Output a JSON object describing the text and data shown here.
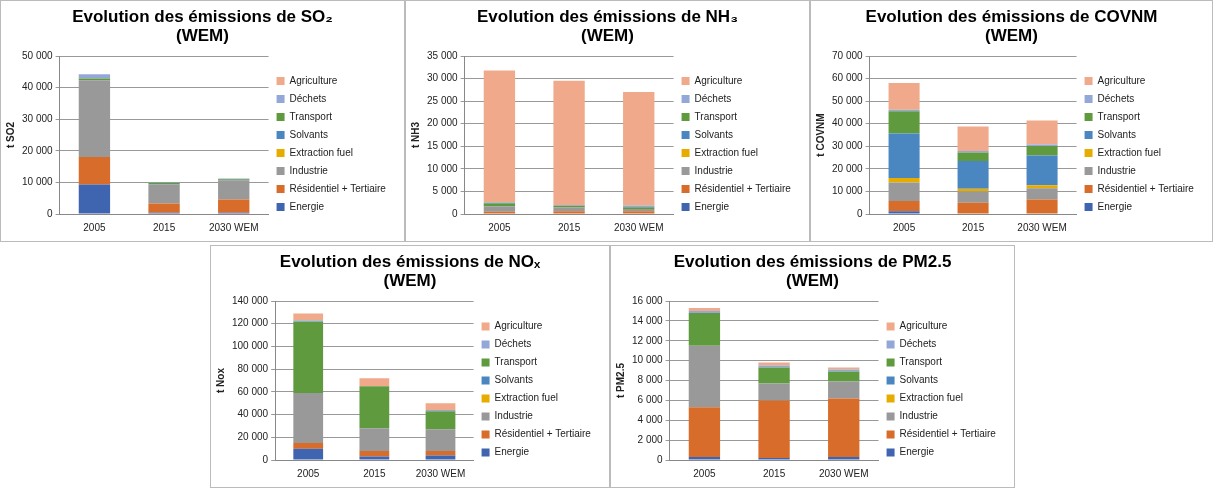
{
  "chart_data": [
    {
      "type": "bar",
      "stacked": true,
      "title": "Evolution des émissions de SO₂\n(WEM)",
      "ylabel": "t SO2",
      "categories": [
        "2005",
        "2015",
        "2030 WEM"
      ],
      "ylim": [
        0,
        50000
      ],
      "yticks": [
        {
          "value": 0,
          "label": "0"
        },
        {
          "value": 10000,
          "label": "10 000"
        },
        {
          "value": 20000,
          "label": "20 000"
        },
        {
          "value": 30000,
          "label": "30 000"
        },
        {
          "value": 40000,
          "label": "40 000"
        },
        {
          "value": 50000,
          "label": "50 000"
        }
      ],
      "grid": "y",
      "legend": "right",
      "series": [
        {
          "name": "Energie",
          "color": "#4065b0",
          "values": [
            9300,
            400,
            400
          ]
        },
        {
          "name": "Résidentiel + Tertiaire",
          "color": "#d86c2a",
          "values": [
            8700,
            2900,
            4200
          ]
        },
        {
          "name": "Industrie",
          "color": "#999999",
          "values": [
            24300,
            6100,
            6100
          ]
        },
        {
          "name": "Extraction fuel",
          "color": "#e6ad00",
          "values": [
            0,
            0,
            0
          ]
        },
        {
          "name": "Solvants",
          "color": "#4a87c0",
          "values": [
            0,
            0,
            0
          ]
        },
        {
          "name": "Transport",
          "color": "#5f9b3e",
          "values": [
            600,
            500,
            300
          ]
        },
        {
          "name": "Déchets",
          "color": "#94a8d8",
          "values": [
            1300,
            200,
            200
          ]
        },
        {
          "name": "Agriculture",
          "color": "#f0a98a",
          "values": [
            null,
            0,
            0
          ]
        }
      ]
    },
    {
      "type": "bar",
      "stacked": true,
      "title": "Evolution des émissions de NH₃\n(WEM)",
      "ylabel": "t NH3",
      "categories": [
        "2005",
        "2015",
        "2030 WEM"
      ],
      "ylim": [
        0,
        35000
      ],
      "yticks": [
        {
          "value": 0,
          "label": "0"
        },
        {
          "value": 5000,
          "label": "5 000"
        },
        {
          "value": 10000,
          "label": "10 000"
        },
        {
          "value": 15000,
          "label": "15 000"
        },
        {
          "value": 20000,
          "label": "20 000"
        },
        {
          "value": 25000,
          "label": "25 000"
        },
        {
          "value": 30000,
          "label": "30 000"
        },
        {
          "value": 35000,
          "label": "35 000"
        }
      ],
      "grid": "y",
      "legend": "right",
      "series": [
        {
          "name": "Energie",
          "color": "#4065b0",
          "values": [
            100,
            100,
            100
          ]
        },
        {
          "name": "Résidentiel + Tertiaire",
          "color": "#d86c2a",
          "values": [
            400,
            500,
            500
          ]
        },
        {
          "name": "Industrie",
          "color": "#999999",
          "values": [
            1200,
            900,
            500
          ]
        },
        {
          "name": "Extraction fuel",
          "color": "#e6ad00",
          "values": [
            0,
            0,
            0
          ]
        },
        {
          "name": "Solvants",
          "color": "#4a87c0",
          "values": [
            0,
            0,
            0
          ]
        },
        {
          "name": "Transport",
          "color": "#5f9b3e",
          "values": [
            700,
            300,
            400
          ]
        },
        {
          "name": "Déchets",
          "color": "#94a8d8",
          "values": [
            200,
            200,
            400
          ]
        },
        {
          "name": "Agriculture",
          "color": "#f0a98a",
          "values": [
            29200,
            27500,
            25100
          ]
        }
      ]
    },
    {
      "type": "bar",
      "stacked": true,
      "title": "Evolution des émissions de COVNM\n(WEM)",
      "ylabel": "t COVNM",
      "categories": [
        "2005",
        "2015",
        "2030 WEM"
      ],
      "ylim": [
        0,
        70000
      ],
      "yticks": [
        {
          "value": 0,
          "label": "0"
        },
        {
          "value": 10000,
          "label": "10 000"
        },
        {
          "value": 20000,
          "label": "20 000"
        },
        {
          "value": 30000,
          "label": "30 000"
        },
        {
          "value": 40000,
          "label": "40 000"
        },
        {
          "value": 50000,
          "label": "50 000"
        },
        {
          "value": 60000,
          "label": "60 000"
        },
        {
          "value": 70000,
          "label": "70 000"
        }
      ],
      "grid": "y",
      "legend": "right",
      "series": [
        {
          "name": "Energie",
          "color": "#4065b0",
          "values": [
            1200,
            200,
            200
          ]
        },
        {
          "name": "Résidentiel + Tertiaire",
          "color": "#d86c2a",
          "values": [
            4600,
            4800,
            6200
          ]
        },
        {
          "name": "Industrie",
          "color": "#999999",
          "values": [
            8200,
            5000,
            5000
          ]
        },
        {
          "name": "Extraction fuel",
          "color": "#e6ad00",
          "values": [
            2000,
            1200,
            1300
          ]
        },
        {
          "name": "Solvants",
          "color": "#4a87c0",
          "values": [
            19700,
            12300,
            13200
          ]
        },
        {
          "name": "Transport",
          "color": "#5f9b3e",
          "values": [
            9800,
            3800,
            4200
          ]
        },
        {
          "name": "Déchets",
          "color": "#94a8d8",
          "values": [
            700,
            600,
            700
          ]
        },
        {
          "name": "Agriculture",
          "color": "#f0a98a",
          "values": [
            11800,
            10900,
            10600
          ]
        }
      ]
    },
    {
      "type": "bar",
      "stacked": true,
      "title": "Evolution des émissions de NOₓ\n(WEM)",
      "ylabel": "t Nox",
      "categories": [
        "2005",
        "2015",
        "2030 WEM"
      ],
      "ylim": [
        0,
        140000
      ],
      "yticks": [
        {
          "value": 0,
          "label": "0"
        },
        {
          "value": 20000,
          "label": "20 000"
        },
        {
          "value": 40000,
          "label": "40 000"
        },
        {
          "value": 60000,
          "label": "60 000"
        },
        {
          "value": 80000,
          "label": "80 000"
        },
        {
          "value": 100000,
          "label": "100 000"
        },
        {
          "value": 120000,
          "label": "120 000"
        },
        {
          "value": 140000,
          "label": "140 000"
        }
      ],
      "grid": "y",
      "legend": "right",
      "series": [
        {
          "name": "Energie",
          "color": "#4065b0",
          "values": [
            10000,
            3000,
            4000
          ]
        },
        {
          "name": "Résidentiel + Tertiaire",
          "color": "#d86c2a",
          "values": [
            5000,
            5000,
            4000
          ]
        },
        {
          "name": "Industrie",
          "color": "#999999",
          "values": [
            44000,
            20000,
            19000
          ]
        },
        {
          "name": "Extraction fuel",
          "color": "#e6ad00",
          "values": [
            0,
            0,
            0
          ]
        },
        {
          "name": "Solvants",
          "color": "#4a87c0",
          "values": [
            0,
            0,
            0
          ]
        },
        {
          "name": "Transport",
          "color": "#5f9b3e",
          "values": [
            63000,
            37000,
            16000
          ]
        },
        {
          "name": "Déchets",
          "color": "#94a8d8",
          "values": [
            1000,
            0,
            1000
          ]
        },
        {
          "name": "Agriculture",
          "color": "#f0a98a",
          "values": [
            6000,
            7000,
            6000
          ]
        }
      ]
    },
    {
      "type": "bar",
      "stacked": true,
      "title": "Evolution des émissions de PM2.5\n(WEM)",
      "ylabel": "t PM2.5",
      "categories": [
        "2005",
        "2015",
        "2030 WEM"
      ],
      "ylim": [
        0,
        16000
      ],
      "yticks": [
        {
          "value": 0,
          "label": "0"
        },
        {
          "value": 2000,
          "label": "2 000"
        },
        {
          "value": 4000,
          "label": "4 000"
        },
        {
          "value": 6000,
          "label": "6 000"
        },
        {
          "value": 8000,
          "label": "8 000"
        },
        {
          "value": 10000,
          "label": "10 000"
        },
        {
          "value": 12000,
          "label": "12 000"
        },
        {
          "value": 14000,
          "label": "14 000"
        },
        {
          "value": 16000,
          "label": "16 000"
        }
      ],
      "grid": "y",
      "legend": "right",
      "series": [
        {
          "name": "Energie",
          "color": "#4065b0",
          "values": [
            300,
            200,
            300
          ]
        },
        {
          "name": "Résidentiel + Tertiaire",
          "color": "#d86c2a",
          "values": [
            5000,
            5800,
            5900
          ]
        },
        {
          "name": "Industrie",
          "color": "#999999",
          "values": [
            6200,
            1700,
            1700
          ]
        },
        {
          "name": "Extraction fuel",
          "color": "#e6ad00",
          "values": [
            0,
            0,
            0
          ]
        },
        {
          "name": "Solvants",
          "color": "#4a87c0",
          "values": [
            0,
            0,
            0
          ]
        },
        {
          "name": "Transport",
          "color": "#5f9b3e",
          "values": [
            3300,
            1600,
            1000
          ]
        },
        {
          "name": "Déchets",
          "color": "#94a8d8",
          "values": [
            200,
            200,
            200
          ]
        },
        {
          "name": "Agriculture",
          "color": "#f0a98a",
          "values": [
            300,
            300,
            200
          ]
        }
      ]
    }
  ]
}
